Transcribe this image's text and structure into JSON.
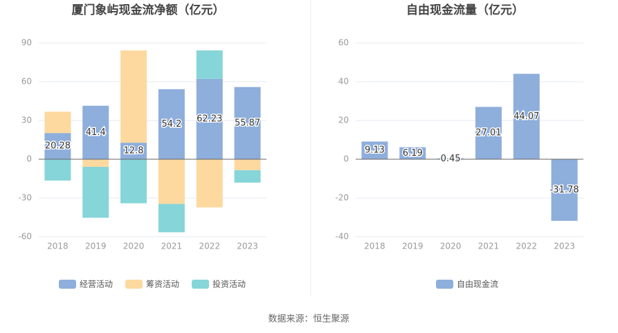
{
  "chart_data": [
    {
      "type": "bar",
      "stacked": true,
      "title": "厦门象屿现金流净额（亿元）",
      "categories": [
        "2018",
        "2019",
        "2020",
        "2021",
        "2022",
        "2023"
      ],
      "series": [
        {
          "name": "经营活动",
          "color": "#8eaedc",
          "show_labels": true,
          "values": [
            20.28,
            41.4,
            12.8,
            54.2,
            62.23,
            55.87
          ]
        },
        {
          "name": "筹资活动",
          "color": "#fdd9a0",
          "values": [
            16.5,
            -5.9,
            71.4,
            -34.6,
            -37.3,
            -8.5
          ]
        },
        {
          "name": "投资活动",
          "color": "#86d5d8",
          "values": [
            -16.5,
            -39.4,
            -34.1,
            -21.9,
            22.0,
            -9.6
          ]
        }
      ],
      "ylim": [
        -60,
        90
      ],
      "yticks": [
        -60,
        -30,
        0,
        30,
        60,
        90
      ],
      "grid": true
    },
    {
      "type": "bar",
      "title": "自由现金流量（亿元）",
      "categories": [
        "2018",
        "2019",
        "2020",
        "2021",
        "2022",
        "2023"
      ],
      "series": [
        {
          "name": "自由现金流",
          "color": "#8eaedc",
          "show_labels": true,
          "values": [
            9.13,
            6.19,
            0.45,
            27.01,
            44.07,
            -31.78
          ]
        }
      ],
      "ylim": [
        -40,
        60
      ],
      "yticks": [
        -40,
        -20,
        0,
        20,
        40,
        60
      ],
      "grid": true
    }
  ],
  "source": "数据来源：恒生聚源"
}
